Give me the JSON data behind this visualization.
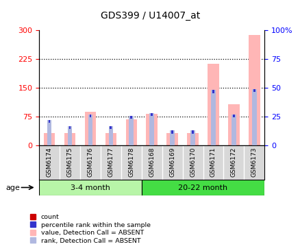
{
  "title": "GDS399 / U14007_at",
  "samples": [
    "GSM6174",
    "GSM6175",
    "GSM6176",
    "GSM6177",
    "GSM6178",
    "GSM6168",
    "GSM6169",
    "GSM6170",
    "GSM6171",
    "GSM6172",
    "GSM6173"
  ],
  "value_absent": [
    33,
    33,
    88,
    33,
    68,
    83,
    33,
    33,
    213,
    108,
    288
  ],
  "rank_absent_pct": [
    22,
    17,
    27,
    17,
    26,
    28,
    13,
    13,
    48,
    27,
    49
  ],
  "count_val": [
    5,
    5,
    5,
    5,
    5,
    5,
    5,
    5,
    5,
    5,
    5
  ],
  "ylim_left": [
    0,
    300
  ],
  "ylim_right": [
    0,
    100
  ],
  "yticks_left": [
    0,
    75,
    150,
    225,
    300
  ],
  "yticks_right": [
    0,
    25,
    50,
    75,
    100
  ],
  "ytick_labels_right": [
    "0",
    "25",
    "50",
    "75",
    "100%"
  ],
  "color_value_absent": "#ffb6b6",
  "color_rank_absent": "#b0b8e0",
  "color_count": "#cc0000",
  "color_rank_blue": "#3333cc",
  "xtick_bg": "#d8d8d8",
  "group1_color": "#b8f5a8",
  "group2_color": "#44dd44",
  "legend": [
    {
      "label": "count",
      "color": "#cc0000"
    },
    {
      "label": "percentile rank within the sample",
      "color": "#3333cc"
    },
    {
      "label": "value, Detection Call = ABSENT",
      "color": "#ffb6b6"
    },
    {
      "label": "rank, Detection Call = ABSENT",
      "color": "#b0b8e0"
    }
  ]
}
